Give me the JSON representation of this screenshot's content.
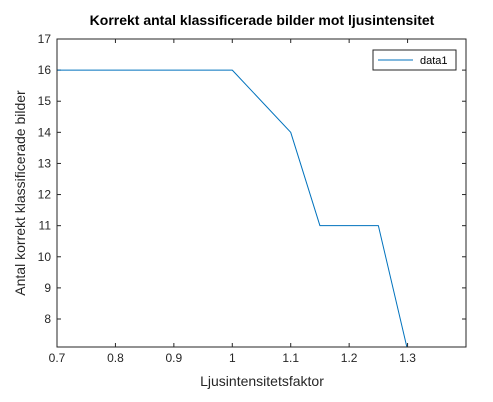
{
  "chart_data": {
    "type": "line",
    "title": "Korrekt antal klassificerade bilder mot ljusintensitet",
    "xlabel": "Ljusintensitetsfaktor",
    "ylabel": "Antal korrekt klassificerade bilder",
    "xlim": [
      0.7,
      1.4
    ],
    "ylim": [
      7.1,
      17
    ],
    "xticks": [
      0.7,
      0.8,
      0.9,
      1,
      1.1,
      1.2,
      1.3
    ],
    "xtick_labels": [
      "0.7",
      "0.8",
      "0.9",
      "1",
      "1.1",
      "1.2",
      "1.3"
    ],
    "yticks": [
      8,
      9,
      10,
      11,
      12,
      13,
      14,
      15,
      16,
      17
    ],
    "ytick_labels": [
      "8",
      "9",
      "10",
      "11",
      "12",
      "13",
      "14",
      "15",
      "16",
      "17"
    ],
    "grid": false,
    "legend_position": "top-right",
    "series": [
      {
        "name": "data1",
        "color": "#0072bd",
        "x": [
          0.7,
          0.8,
          0.9,
          1.0,
          1.1,
          1.15,
          1.2,
          1.25,
          1.3
        ],
        "y": [
          16,
          16,
          16,
          16,
          14,
          11,
          11,
          11,
          7
        ]
      }
    ]
  }
}
